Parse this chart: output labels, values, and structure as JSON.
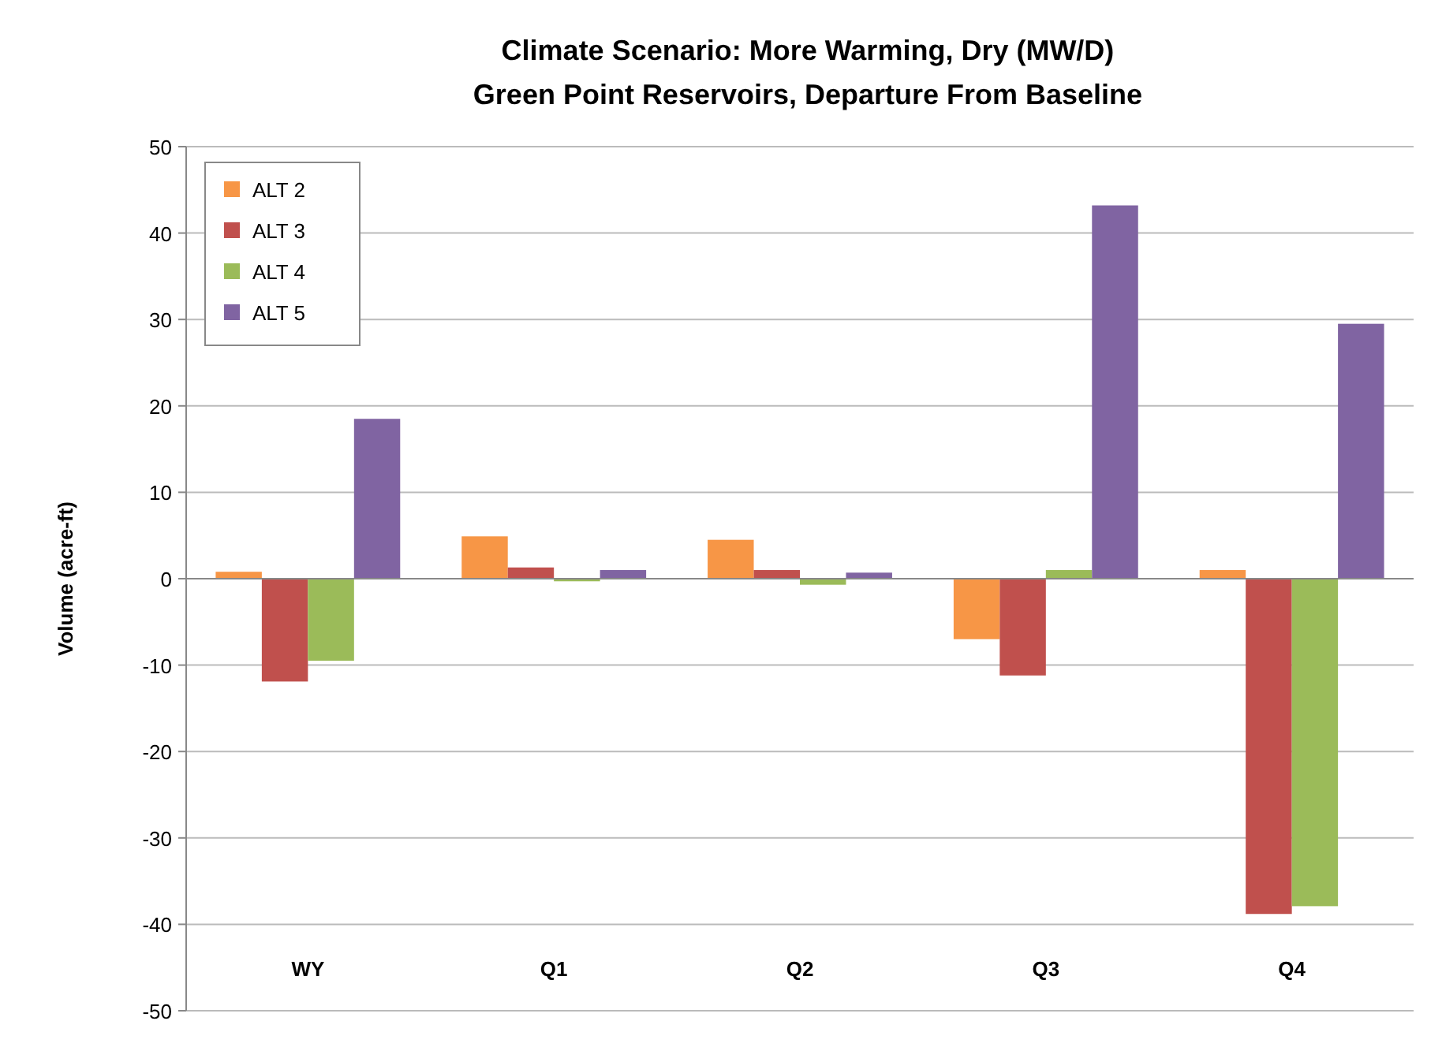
{
  "chart_data": {
    "type": "bar",
    "title": "Climate Scenario:  More Warming, Dry (MW/D)",
    "subtitle": "Green Point Reservoirs, Departure From Baseline",
    "ylabel": "Volume (acre-ft)",
    "categories": [
      "WY",
      "Q1",
      "Q2",
      "Q3",
      "Q4"
    ],
    "series": [
      {
        "name": "ALT 2",
        "color": "#f79646",
        "values": [
          0.8,
          4.9,
          4.5,
          -7.0,
          1.0
        ]
      },
      {
        "name": "ALT 3",
        "color": "#c0504d",
        "values": [
          -11.9,
          1.3,
          1.0,
          -11.2,
          -38.8
        ]
      },
      {
        "name": "ALT 4",
        "color": "#9bbb59",
        "values": [
          -9.5,
          -0.3,
          -0.7,
          1.0,
          -37.9
        ]
      },
      {
        "name": "ALT 5",
        "color": "#8064a2",
        "values": [
          18.5,
          1.0,
          0.7,
          43.2,
          29.5
        ]
      }
    ],
    "ylim": [
      -50,
      50
    ],
    "yticks": [
      -50,
      -40,
      -30,
      -20,
      -10,
      0,
      10,
      20,
      30,
      40,
      50
    ],
    "grid": "y",
    "legend": "top left"
  }
}
